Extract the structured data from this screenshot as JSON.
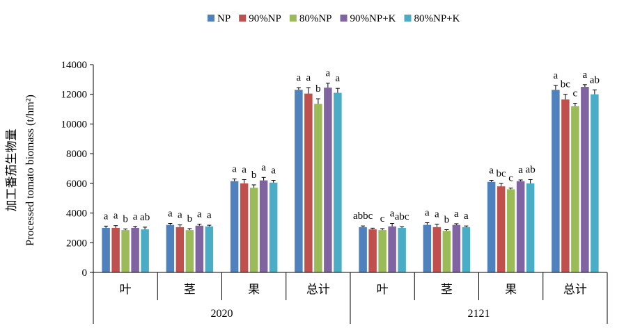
{
  "chart_data": {
    "type": "bar",
    "ylabel_cn": "加工番茄生物量",
    "ylabel_en": "Processed tomato biomass (t/hm²)",
    "ylim": [
      0,
      14000
    ],
    "yticks": [
      "0",
      "2000",
      "4000",
      "6000",
      "8000",
      "10000",
      "12000",
      "14000"
    ],
    "legend_position": "top-right",
    "grid": false,
    "groups": [
      {
        "label": "2020",
        "categories": [
          "叶",
          "茎",
          "果",
          "总计"
        ]
      },
      {
        "label": "2121",
        "categories": [
          "叶",
          "茎",
          "果",
          "总计"
        ]
      }
    ],
    "categories": [
      "叶",
      "茎",
      "果",
      "总计",
      "叶",
      "茎",
      "果",
      "总计"
    ],
    "series": [
      {
        "name": "NP",
        "color": "#4f81bd",
        "values": [
          3000,
          3200,
          6150,
          12300,
          3050,
          3200,
          6100,
          12300
        ],
        "errors": [
          120,
          100,
          150,
          150,
          80,
          150,
          100,
          300
        ],
        "letters": [
          "a",
          "a",
          "a",
          "a",
          "abbc",
          "a",
          "a",
          "a"
        ]
      },
      {
        "name": "90%NP",
        "color": "#c0504d",
        "values": [
          3000,
          3050,
          6000,
          12050,
          2900,
          3050,
          5800,
          11650
        ],
        "errors": [
          150,
          150,
          250,
          400,
          80,
          200,
          200,
          350
        ],
        "letters": [
          "a",
          "a",
          "a",
          "a",
          "",
          "a",
          "bc",
          "bc"
        ]
      },
      {
        "name": "80%NP",
        "color": "#9bbb59",
        "values": [
          2850,
          2850,
          5700,
          11350,
          2850,
          2800,
          5600,
          11200
        ],
        "errors": [
          80,
          100,
          200,
          350,
          100,
          80,
          80,
          200
        ],
        "letters": [
          "b",
          "b",
          "b",
          "b",
          "c",
          "b",
          "c",
          "c"
        ]
      },
      {
        "name": "90%NP+K",
        "color": "#8064a2",
        "values": [
          3000,
          3150,
          6200,
          12450,
          3100,
          3200,
          6150,
          12500
        ],
        "errors": [
          100,
          100,
          200,
          300,
          200,
          80,
          80,
          150
        ],
        "letters": [
          "a",
          "a",
          "a",
          "a",
          "a",
          "a",
          "a",
          "a"
        ]
      },
      {
        "name": "80%NP+K",
        "color": "#4bacc6",
        "values": [
          2900,
          3100,
          6050,
          12100,
          3000,
          3050,
          6000,
          12000
        ],
        "errors": [
          150,
          80,
          150,
          300,
          80,
          80,
          250,
          300
        ],
        "letters": [
          "ab",
          "a",
          "a",
          "a",
          "abc",
          "a",
          "ab",
          "ab"
        ]
      }
    ]
  }
}
